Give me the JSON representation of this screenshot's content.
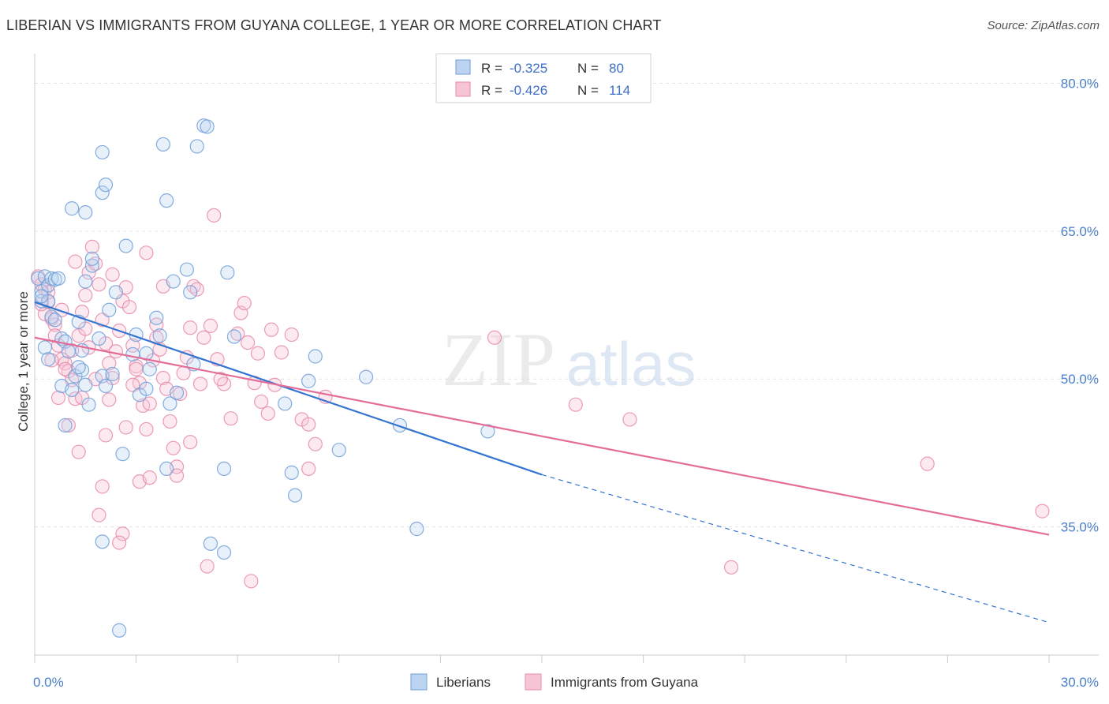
{
  "title": "LIBERIAN VS IMMIGRANTS FROM GUYANA COLLEGE, 1 YEAR OR MORE CORRELATION CHART",
  "source": "Source: ZipAtlas.com",
  "watermark": {
    "zip": "ZIP",
    "atlas": "atlas"
  },
  "colors": {
    "blue": "#6f9fd8",
    "blue_line": "#3574cf",
    "pink": "#e88aaa",
    "pink_line": "#e36d98",
    "tick_text": "#4a7fc9"
  },
  "stats": [
    {
      "r_label": "R =",
      "r": "-0.325",
      "n_label": "N =",
      "n": "80"
    },
    {
      "r_label": "R =",
      "r": "-0.426",
      "n_label": "N =",
      "n": "114"
    }
  ],
  "chart_data": {
    "type": "scatter",
    "title": "LIBERIAN VS IMMIGRANTS FROM GUYANA COLLEGE, 1 YEAR OR MORE CORRELATION CHART",
    "xlabel": "",
    "ylabel": "College, 1 year or more",
    "xlim": [
      0,
      30
    ],
    "ylim": [
      22,
      83
    ],
    "x_tick_labels": [
      "0.0%",
      "30.0%"
    ],
    "y_ticks": [
      35,
      50,
      65,
      80
    ],
    "y_tick_labels": [
      "35.0%",
      "50.0%",
      "65.0%",
      "80.0%"
    ],
    "grid": true,
    "legend_position": "bottom",
    "series": [
      {
        "name": "Liberians",
        "color": "#6f9fd8",
        "trend": {
          "x": [
            0,
            15
          ],
          "y": [
            57.8,
            40.3
          ],
          "dashed_to": [
            30,
            25.3
          ]
        },
        "points": [
          [
            0.1,
            60.2
          ],
          [
            0.2,
            58.9
          ],
          [
            0.3,
            60.4
          ],
          [
            0.4,
            59.5
          ],
          [
            0.5,
            60.2
          ],
          [
            0.6,
            60.1
          ],
          [
            0.2,
            57.9
          ],
          [
            0.5,
            56.3
          ],
          [
            0.3,
            53.2
          ],
          [
            0.4,
            52.0
          ],
          [
            0.8,
            54.1
          ],
          [
            0.6,
            56.0
          ],
          [
            0.9,
            53.8
          ],
          [
            1.0,
            52.8
          ],
          [
            0.8,
            49.3
          ],
          [
            1.2,
            50.3
          ],
          [
            1.1,
            48.9
          ],
          [
            1.4,
            50.9
          ],
          [
            1.5,
            49.4
          ],
          [
            1.4,
            52.9
          ],
          [
            1.3,
            55.8
          ],
          [
            1.5,
            59.9
          ],
          [
            1.7,
            61.5
          ],
          [
            1.7,
            62.2
          ],
          [
            1.9,
            54.1
          ],
          [
            2.0,
            50.3
          ],
          [
            2.2,
            57.0
          ],
          [
            2.4,
            58.8
          ],
          [
            2.1,
            49.3
          ],
          [
            2.7,
            63.5
          ],
          [
            2.6,
            42.4
          ],
          [
            2.9,
            52.5
          ],
          [
            3.1,
            48.4
          ],
          [
            3.3,
            49.0
          ],
          [
            3.0,
            54.5
          ],
          [
            3.6,
            56.2
          ],
          [
            3.7,
            54.4
          ],
          [
            3.4,
            51.0
          ],
          [
            4.0,
            47.5
          ],
          [
            4.2,
            48.6
          ],
          [
            4.1,
            59.9
          ],
          [
            4.5,
            61.1
          ],
          [
            4.6,
            58.8
          ],
          [
            4.7,
            51.5
          ],
          [
            3.9,
            40.9
          ],
          [
            5.0,
            75.7
          ],
          [
            5.1,
            75.6
          ],
          [
            4.8,
            73.6
          ],
          [
            3.8,
            73.8
          ],
          [
            3.9,
            68.1
          ],
          [
            2.0,
            73.0
          ],
          [
            2.0,
            68.9
          ],
          [
            2.1,
            69.7
          ],
          [
            1.1,
            67.3
          ],
          [
            1.5,
            66.9
          ],
          [
            5.7,
            60.8
          ],
          [
            5.9,
            54.3
          ],
          [
            5.6,
            40.9
          ],
          [
            5.2,
            33.3
          ],
          [
            5.6,
            32.4
          ],
          [
            7.4,
            47.5
          ],
          [
            7.7,
            38.2
          ],
          [
            7.6,
            40.5
          ],
          [
            8.1,
            49.8
          ],
          [
            8.3,
            52.3
          ],
          [
            9.0,
            42.8
          ],
          [
            9.8,
            50.2
          ],
          [
            10.8,
            45.3
          ],
          [
            11.3,
            34.8
          ],
          [
            13.4,
            44.7
          ],
          [
            2.0,
            33.5
          ],
          [
            2.5,
            24.5
          ],
          [
            0.9,
            45.3
          ],
          [
            0.4,
            57.9
          ],
          [
            0.7,
            60.2
          ],
          [
            1.3,
            51.2
          ],
          [
            1.6,
            47.4
          ],
          [
            2.3,
            50.5
          ],
          [
            3.3,
            52.6
          ],
          [
            0.2,
            58.4
          ]
        ]
      },
      {
        "name": "Immigrants from Guyana",
        "color": "#e88aaa",
        "trend": {
          "x": [
            0,
            30
          ],
          "y": [
            54.2,
            34.2
          ]
        },
        "points": [
          [
            0.1,
            60.4
          ],
          [
            0.2,
            59.6
          ],
          [
            0.3,
            59.1
          ],
          [
            0.4,
            57.8
          ],
          [
            0.5,
            56.1
          ],
          [
            0.6,
            55.5
          ],
          [
            0.7,
            53.4
          ],
          [
            0.8,
            52.0
          ],
          [
            0.9,
            51.6
          ],
          [
            1.0,
            50.8
          ],
          [
            1.1,
            49.9
          ],
          [
            1.2,
            48.0
          ],
          [
            0.5,
            51.9
          ],
          [
            0.7,
            48.1
          ],
          [
            1.0,
            45.3
          ],
          [
            1.3,
            54.4
          ],
          [
            1.4,
            56.8
          ],
          [
            1.5,
            58.5
          ],
          [
            1.6,
            60.8
          ],
          [
            1.7,
            63.4
          ],
          [
            1.8,
            61.7
          ],
          [
            1.9,
            59.6
          ],
          [
            2.0,
            56.0
          ],
          [
            2.1,
            53.6
          ],
          [
            2.2,
            51.6
          ],
          [
            2.3,
            50.1
          ],
          [
            2.4,
            52.8
          ],
          [
            2.5,
            54.9
          ],
          [
            2.6,
            57.9
          ],
          [
            2.7,
            59.3
          ],
          [
            2.8,
            57.3
          ],
          [
            2.9,
            53.4
          ],
          [
            3.0,
            51.3
          ],
          [
            3.1,
            49.6
          ],
          [
            3.2,
            47.3
          ],
          [
            3.3,
            44.9
          ],
          [
            3.5,
            51.9
          ],
          [
            3.6,
            54.2
          ],
          [
            3.7,
            53.0
          ],
          [
            3.8,
            50.1
          ],
          [
            3.9,
            49.0
          ],
          [
            4.0,
            45.7
          ],
          [
            4.1,
            43.0
          ],
          [
            4.2,
            41.1
          ],
          [
            4.4,
            50.6
          ],
          [
            4.5,
            52.2
          ],
          [
            4.6,
            55.2
          ],
          [
            4.7,
            59.4
          ],
          [
            4.8,
            59.1
          ],
          [
            5.0,
            54.2
          ],
          [
            5.2,
            55.4
          ],
          [
            5.4,
            52.0
          ],
          [
            5.6,
            49.5
          ],
          [
            5.8,
            46.0
          ],
          [
            6.0,
            54.6
          ],
          [
            6.1,
            56.7
          ],
          [
            6.3,
            53.7
          ],
          [
            6.5,
            49.6
          ],
          [
            6.7,
            47.7
          ],
          [
            6.9,
            46.5
          ],
          [
            7.1,
            49.4
          ],
          [
            7.3,
            52.7
          ],
          [
            7.6,
            54.5
          ],
          [
            7.9,
            45.9
          ],
          [
            8.1,
            45.4
          ],
          [
            8.3,
            43.4
          ],
          [
            8.6,
            48.2
          ],
          [
            8.1,
            40.9
          ],
          [
            5.3,
            66.6
          ],
          [
            3.3,
            62.8
          ],
          [
            2.3,
            60.6
          ],
          [
            1.2,
            61.9
          ],
          [
            2.0,
            39.1
          ],
          [
            1.3,
            42.6
          ],
          [
            2.1,
            44.3
          ],
          [
            1.4,
            48.1
          ],
          [
            3.1,
            39.6
          ],
          [
            3.4,
            40.0
          ],
          [
            4.2,
            40.2
          ],
          [
            4.6,
            43.6
          ],
          [
            1.9,
            36.2
          ],
          [
            2.6,
            34.3
          ],
          [
            2.5,
            33.4
          ],
          [
            5.1,
            31.0
          ],
          [
            6.4,
            29.5
          ],
          [
            13.6,
            54.2
          ],
          [
            16.0,
            47.4
          ],
          [
            17.6,
            45.9
          ],
          [
            20.6,
            30.9
          ],
          [
            26.4,
            41.4
          ],
          [
            29.8,
            36.6
          ],
          [
            0.3,
            56.6
          ],
          [
            0.6,
            54.4
          ],
          [
            0.9,
            51.0
          ],
          [
            1.1,
            52.9
          ],
          [
            1.5,
            55.1
          ],
          [
            1.8,
            50.0
          ],
          [
            2.2,
            47.9
          ],
          [
            2.7,
            45.1
          ],
          [
            3.0,
            51.0
          ],
          [
            3.4,
            47.5
          ],
          [
            3.8,
            59.4
          ],
          [
            4.3,
            48.5
          ],
          [
            5.5,
            50.0
          ],
          [
            6.6,
            52.6
          ],
          [
            7.0,
            55.0
          ],
          [
            0.4,
            58.8
          ],
          [
            0.2,
            57.6
          ],
          [
            2.9,
            49.4
          ],
          [
            3.6,
            55.5
          ],
          [
            4.9,
            49.5
          ],
          [
            6.2,
            57.7
          ],
          [
            1.6,
            53.2
          ],
          [
            0.8,
            57.0
          ]
        ]
      }
    ]
  }
}
